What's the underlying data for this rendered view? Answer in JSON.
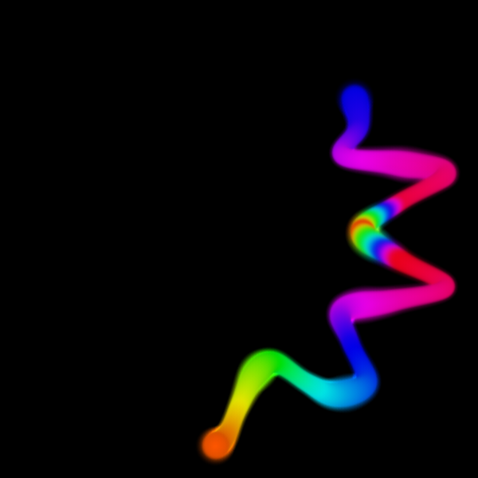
{
  "scene": {
    "background_color": "#000000",
    "subject": "rainbow-ribbon",
    "palette": [
      "#0000ff",
      "#ff00ff",
      "#ff0044",
      "#ff0000",
      "#ff0066",
      "#0044ff",
      "#00ffff",
      "#00ff00",
      "#ffff00",
      "#ff6600"
    ]
  }
}
